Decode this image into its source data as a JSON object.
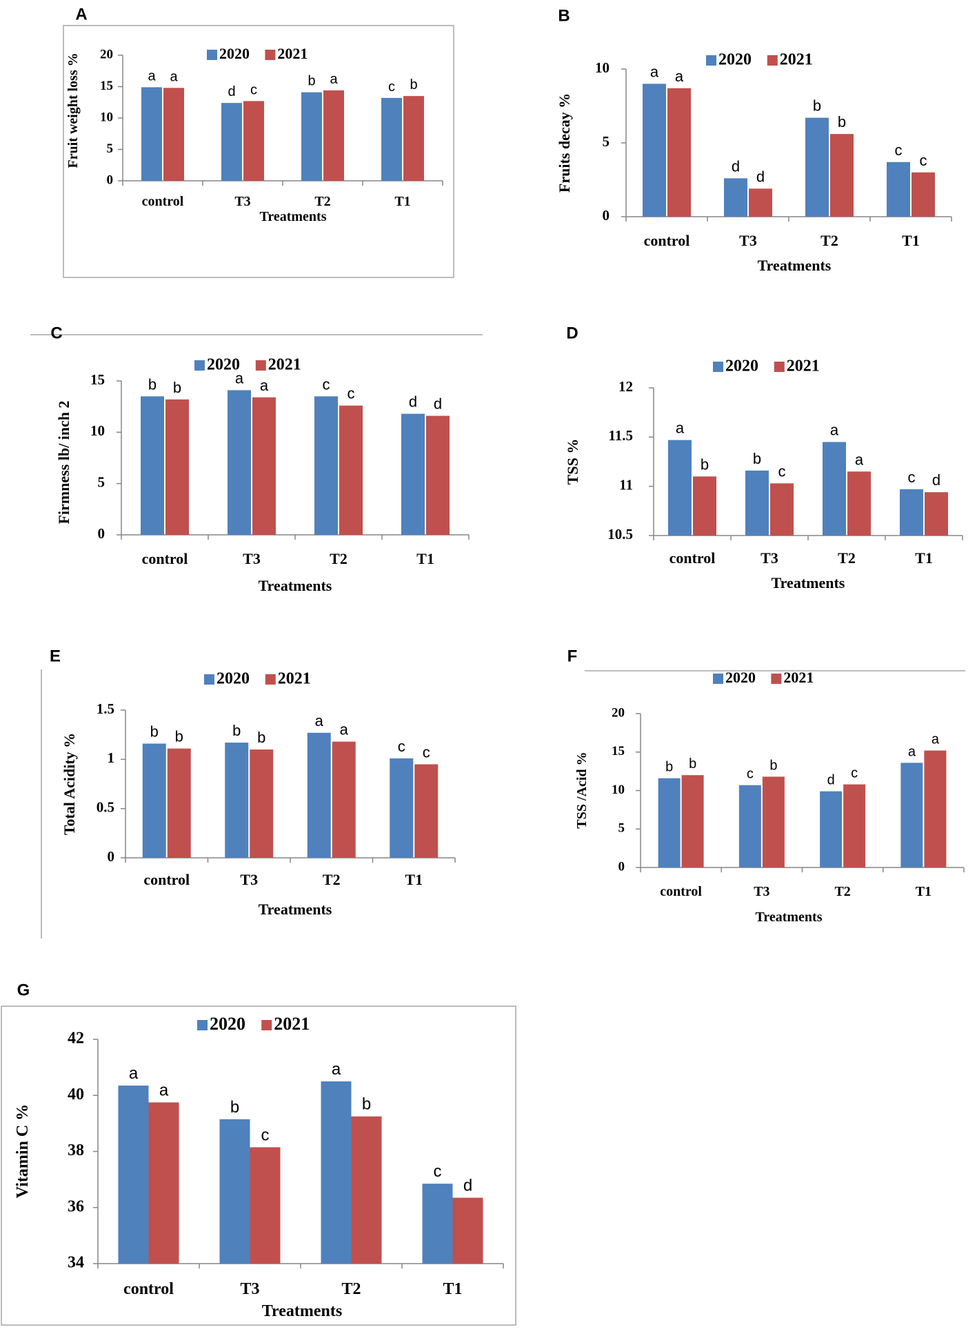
{
  "figure": {
    "colors": {
      "2020": "#4f81bd",
      "2021": "#c0504d",
      "axis": "#868686",
      "frame": "#a6a6a6"
    }
  },
  "chart_data": [
    {
      "panel": "A",
      "type": "bar",
      "ylabel": "Fruit weight loss %",
      "xlabel": "Treatments",
      "categories": [
        "control",
        "T3",
        "T2",
        "T1"
      ],
      "ylim": [
        0,
        20
      ],
      "yticks": [
        "0",
        "5",
        "10",
        "15",
        "20"
      ],
      "ytick_values": [
        0,
        5,
        10,
        15,
        20
      ],
      "series": [
        {
          "name": "2020",
          "values": [
            14.9,
            12.4,
            14.1,
            13.2
          ],
          "letters": [
            "a",
            "d",
            "b",
            "c"
          ]
        },
        {
          "name": "2021",
          "values": [
            14.8,
            12.7,
            14.4,
            13.5
          ],
          "letters": [
            "a",
            "c",
            "a",
            "b"
          ]
        }
      ]
    },
    {
      "panel": "B",
      "type": "bar",
      "ylabel": "Fruits decay %",
      "xlabel": "Treatments",
      "categories": [
        "control",
        "T3",
        "T2",
        "T1"
      ],
      "ylim": [
        0,
        10
      ],
      "yticks": [
        "0",
        "5",
        "10"
      ],
      "ytick_values": [
        0,
        5,
        10
      ],
      "series": [
        {
          "name": "2020",
          "values": [
            9.0,
            2.6,
            6.7,
            3.7
          ],
          "letters": [
            "a",
            "d",
            "b",
            "c"
          ]
        },
        {
          "name": "2021",
          "values": [
            8.7,
            1.9,
            5.6,
            3.0
          ],
          "letters": [
            "a",
            "d",
            "b",
            "c"
          ]
        }
      ]
    },
    {
      "panel": "C",
      "type": "bar",
      "ylabel": "Firmness lb/ inch 2",
      "xlabel": "Treatments",
      "categories": [
        "control",
        "T3",
        "T2",
        "T1"
      ],
      "ylim": [
        0,
        15
      ],
      "yticks": [
        "0",
        "5",
        "10",
        "15"
      ],
      "ytick_values": [
        0,
        5,
        10,
        15
      ],
      "series": [
        {
          "name": "2020",
          "values": [
            13.5,
            14.1,
            13.5,
            11.8
          ],
          "letters": [
            "b",
            "a",
            "c",
            "d"
          ]
        },
        {
          "name": "2021",
          "values": [
            13.2,
            13.4,
            12.6,
            11.6
          ],
          "letters": [
            "b",
            "a",
            "c",
            "d"
          ]
        }
      ]
    },
    {
      "panel": "D",
      "type": "bar",
      "ylabel": "TSS %",
      "xlabel": "Treatments",
      "categories": [
        "control",
        "T3",
        "T2",
        "T1"
      ],
      "ylim": [
        10.5,
        12
      ],
      "yticks": [
        "10.5",
        "11",
        "11.5",
        "12"
      ],
      "ytick_values": [
        10.5,
        11,
        11.5,
        12
      ],
      "series": [
        {
          "name": "2020",
          "values": [
            11.47,
            11.16,
            11.45,
            10.97
          ],
          "letters": [
            "a",
            "b",
            "a",
            "c"
          ]
        },
        {
          "name": "2021",
          "values": [
            11.1,
            11.03,
            11.15,
            10.94
          ],
          "letters": [
            "b",
            "c",
            "a",
            "d"
          ]
        }
      ]
    },
    {
      "panel": "E",
      "type": "bar",
      "ylabel": "Total Acidity %",
      "xlabel": "Treatments",
      "categories": [
        "control",
        "T3",
        "T2",
        "T1"
      ],
      "ylim": [
        0,
        1.5
      ],
      "yticks": [
        "0",
        "0.5",
        "1",
        "1.5"
      ],
      "ytick_values": [
        0,
        0.5,
        1,
        1.5
      ],
      "series": [
        {
          "name": "2020",
          "values": [
            1.16,
            1.17,
            1.27,
            1.01
          ],
          "letters": [
            "b",
            "b",
            "a",
            "c"
          ]
        },
        {
          "name": "2021",
          "values": [
            1.11,
            1.1,
            1.18,
            0.95
          ],
          "letters": [
            "b",
            "b",
            "a",
            "c"
          ]
        }
      ]
    },
    {
      "panel": "F",
      "type": "bar",
      "ylabel": "TSS /Acid %",
      "xlabel": "Treatments",
      "categories": [
        "control",
        "T3",
        "T2",
        "T1"
      ],
      "ylim": [
        0,
        20
      ],
      "yticks": [
        "0",
        "5",
        "10",
        "15",
        "20"
      ],
      "ytick_values": [
        0,
        5,
        10,
        15,
        20
      ],
      "series": [
        {
          "name": "2020",
          "values": [
            11.6,
            10.7,
            9.9,
            13.6
          ],
          "letters": [
            "b",
            "c",
            "d",
            "a"
          ]
        },
        {
          "name": "2021",
          "values": [
            12.0,
            11.8,
            10.8,
            15.2
          ],
          "letters": [
            "b",
            "b",
            "c",
            "a"
          ]
        }
      ]
    },
    {
      "panel": "G",
      "type": "bar",
      "ylabel": "Vitamin C %",
      "xlabel": "Treatments",
      "categories": [
        "control",
        "T3",
        "T2",
        "T1"
      ],
      "ylim": [
        34,
        42
      ],
      "yticks": [
        "34",
        "36",
        "38",
        "40",
        "42"
      ],
      "ytick_values": [
        34,
        36,
        38,
        40,
        42
      ],
      "series": [
        {
          "name": "2020",
          "values": [
            40.35,
            39.15,
            40.5,
            36.85
          ],
          "letters": [
            "a",
            "b",
            "a",
            "c"
          ]
        },
        {
          "name": "2021",
          "values": [
            39.75,
            38.15,
            39.25,
            36.35
          ],
          "letters": [
            "a",
            "c",
            "b",
            "d"
          ]
        }
      ]
    }
  ]
}
